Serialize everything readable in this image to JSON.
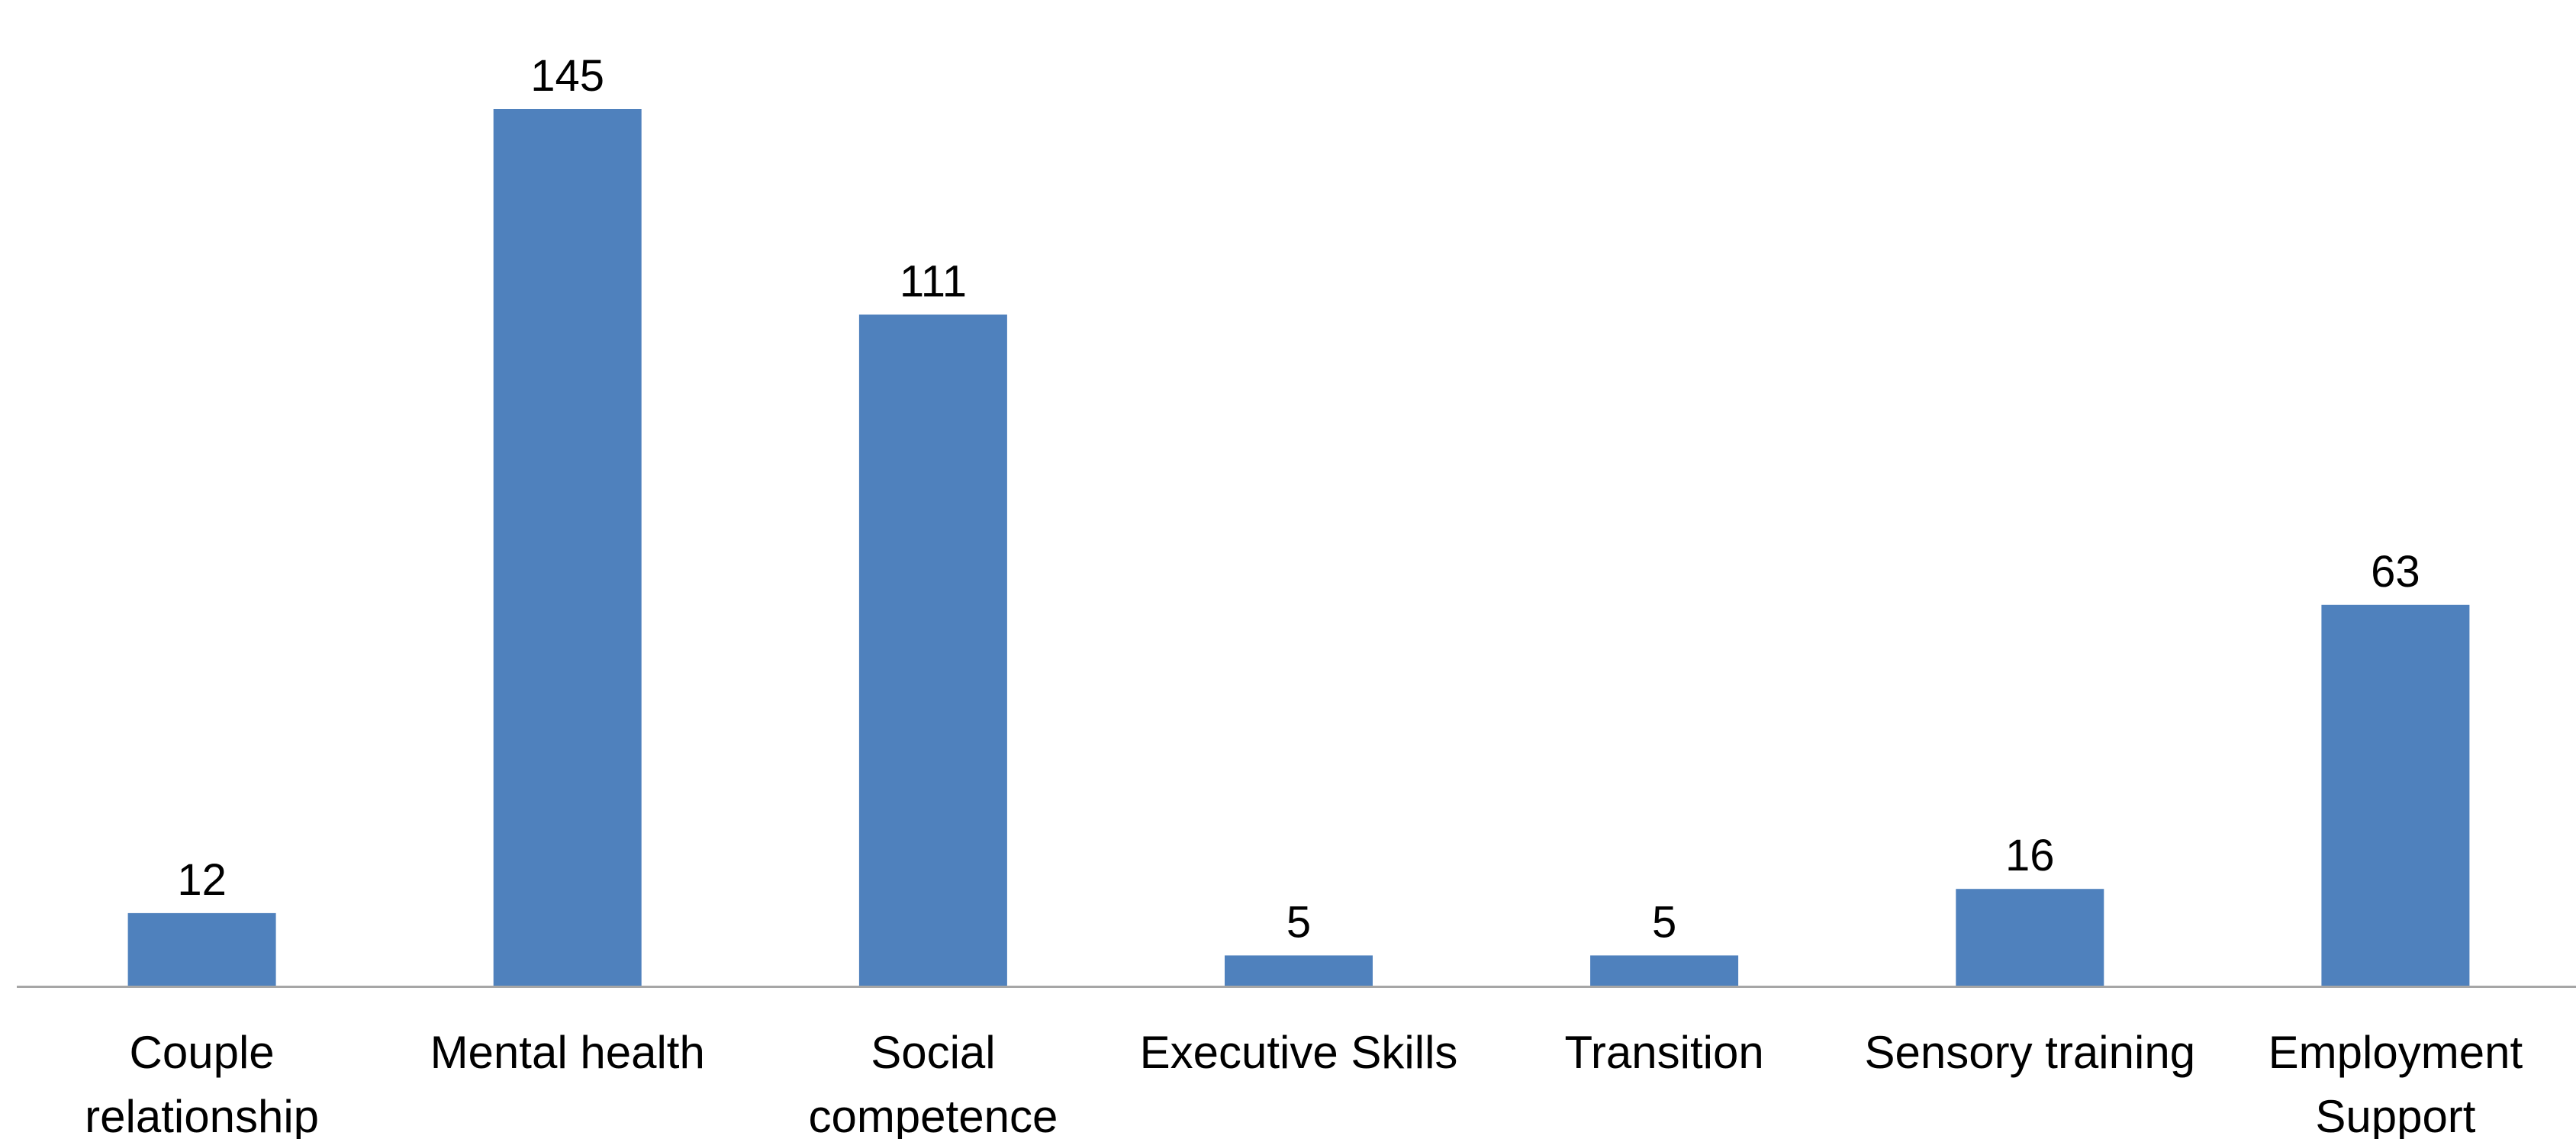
{
  "chart_data": {
    "type": "bar",
    "title": "",
    "xlabel": "",
    "ylabel": "",
    "categories": [
      [
        "Couple",
        "relationship"
      ],
      [
        "Mental health"
      ],
      [
        "Social",
        "competence"
      ],
      [
        "Executive Skills"
      ],
      [
        "Transition"
      ],
      [
        "Sensory training"
      ],
      [
        "Employment",
        "Support"
      ]
    ],
    "values": [
      12,
      145,
      111,
      5,
      5,
      16,
      63
    ],
    "ylim": [
      0,
      145
    ],
    "grid": false,
    "legend": "none",
    "data_labels": true,
    "bar_color": "#4F81BD",
    "axis_color": "#A6A6A6"
  }
}
